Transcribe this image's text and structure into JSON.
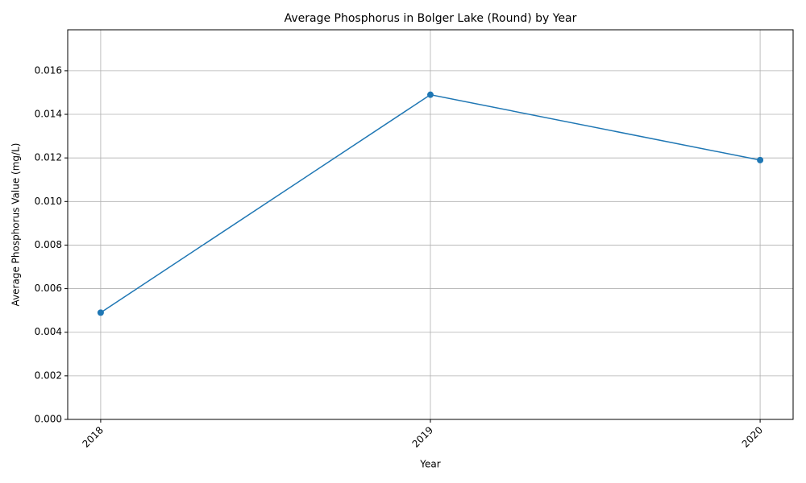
{
  "chart_data": {
    "type": "line",
    "title": "Average Phosphorus in Bolger Lake (Round) by Year",
    "xlabel": "Year",
    "ylabel": "Average Phosphorus Value (mg/L)",
    "x": [
      2018,
      2019,
      2020
    ],
    "series": [
      {
        "name": "Average Phosphorus",
        "color": "#1f77b4",
        "values": [
          0.0049,
          0.0149,
          0.0119
        ]
      }
    ],
    "xlim": [
      2017.9,
      2020.1
    ],
    "xticks": [
      2018,
      2019,
      2020
    ],
    "ylim": [
      0,
      0.01788
    ],
    "yticks": [
      {
        "value": 0,
        "label": "0.000"
      },
      {
        "value": 0.002,
        "label": "0.002"
      },
      {
        "value": 0.004,
        "label": "0.004"
      },
      {
        "value": 0.006,
        "label": "0.006"
      },
      {
        "value": 0.008,
        "label": "0.008"
      },
      {
        "value": 0.01,
        "label": "0.010"
      },
      {
        "value": 0.012,
        "label": "0.012"
      },
      {
        "value": 0.014,
        "label": "0.014"
      },
      {
        "value": 0.016,
        "label": "0.016"
      }
    ],
    "grid": true
  }
}
